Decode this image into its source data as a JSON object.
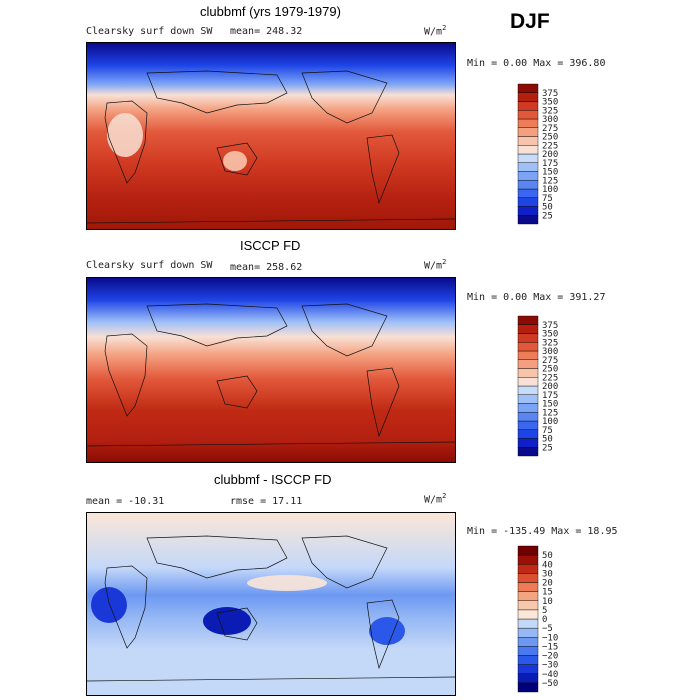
{
  "season": "DJF",
  "units": "W/m",
  "units_sup": "2",
  "panels": [
    {
      "title": "clubbmf (yrs 1979-1979)",
      "variable": "Clearsky surf down SW",
      "mean": "mean= 248.32",
      "minmax": "Min =    0.00 Max = 396.80"
    },
    {
      "title": "ISCCP FD",
      "variable": "Clearsky surf down SW",
      "mean": "mean= 258.62",
      "minmax": "Min =    0.00 Max = 391.27"
    },
    {
      "title": "clubbmf - ISCCP FD",
      "mean": "mean = -10.31",
      "rmse": "rmse =  17.11",
      "minmax": "Min = -135.49 Max =  18.95"
    }
  ],
  "chart_data": [
    {
      "type": "heatmap",
      "title": "clubbmf (yrs 1979-1979)",
      "subtitle": "Clearsky surf down SW",
      "mean": 248.32,
      "min": 0.0,
      "max": 396.8,
      "colorbar_levels": [
        25,
        50,
        75,
        100,
        125,
        150,
        175,
        200,
        225,
        250,
        275,
        300,
        325,
        350,
        375
      ],
      "colorbar_colors": [
        "#0a0a8c",
        "#1020c8",
        "#1e44e6",
        "#3a66f0",
        "#5a86f4",
        "#7ca4f6",
        "#a0c0f8",
        "#c8dcfa",
        "#f8e0d4",
        "#f8c4ac",
        "#f4a080",
        "#ee7c58",
        "#e2583a",
        "#d03a22",
        "#b42010",
        "#8c0c04"
      ]
    },
    {
      "type": "heatmap",
      "title": "ISCCP FD",
      "subtitle": "Clearsky surf down SW",
      "mean": 258.62,
      "min": 0.0,
      "max": 391.27,
      "colorbar_levels": [
        25,
        50,
        75,
        100,
        125,
        150,
        175,
        200,
        225,
        250,
        275,
        300,
        325,
        350,
        375
      ],
      "colorbar_colors": [
        "#0a0a8c",
        "#1020c8",
        "#1e44e6",
        "#3a66f0",
        "#5a86f4",
        "#7ca4f6",
        "#a0c0f8",
        "#c8dcfa",
        "#f8e0d4",
        "#f8c4ac",
        "#f4a080",
        "#ee7c58",
        "#e2583a",
        "#d03a22",
        "#b42010",
        "#8c0c04"
      ]
    },
    {
      "type": "heatmap",
      "title": "clubbmf - ISCCP FD",
      "mean": -10.31,
      "rmse": 17.11,
      "min": -135.49,
      "max": 18.95,
      "colorbar_levels": [
        -50,
        -40,
        -30,
        -20,
        -15,
        -10,
        -5,
        0,
        5,
        10,
        15,
        20,
        30,
        40,
        50
      ],
      "colorbar_labels": [
        "−50",
        "−40",
        "−30",
        "−20",
        "−15",
        "−10",
        "−5",
        "0",
        "5",
        "10",
        "15",
        "20",
        "30",
        "40",
        "50"
      ],
      "colorbar_colors": [
        "#00007a",
        "#0a1cb4",
        "#1a38d8",
        "#2c58ea",
        "#4a78f0",
        "#6c98f2",
        "#96b8f4",
        "#c4d8f8",
        "#fbe6d8",
        "#f8c8ac",
        "#f4a480",
        "#ec7c58",
        "#dc5030",
        "#c02a14",
        "#9a1006",
        "#700000"
      ]
    }
  ]
}
